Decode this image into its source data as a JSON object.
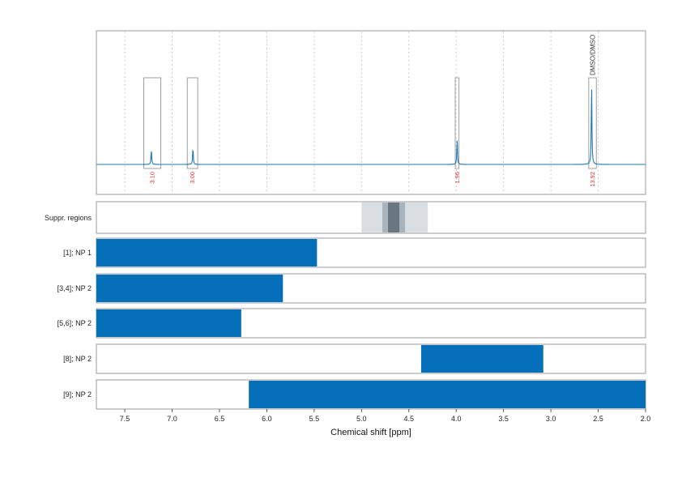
{
  "chart_data": {
    "type": "line",
    "xlabel": "Chemical shift [ppm]",
    "xlim": [
      7.8,
      2.0
    ],
    "x_reversed": true,
    "x_ticks": [
      7.5,
      7.0,
      6.5,
      6.0,
      5.5,
      5.0,
      4.5,
      4.0,
      3.5,
      3.0,
      2.5,
      2.0
    ],
    "x_tick_labels": [
      "7.5",
      "7.0",
      "6.5",
      "6.0",
      "5.5",
      "5.0",
      "4.5",
      "4.0",
      "3.5",
      "3.0",
      "2.5",
      "2.0"
    ],
    "grid": "vertical dotted",
    "colors": {
      "spectrum": "#1f77b4",
      "integral": "#e03030",
      "bar": "#0570b9",
      "box": "#888888"
    },
    "spectrum": {
      "peaks": [
        {
          "center": 7.22,
          "height": 0.18
        },
        {
          "center": 6.78,
          "height": 0.2
        },
        {
          "center": 3.99,
          "height": 0.3
        },
        {
          "center": 2.57,
          "height": 0.95
        }
      ]
    },
    "integration_regions": [
      {
        "start": 7.3,
        "end": 7.12,
        "label": "3.10"
      },
      {
        "start": 6.84,
        "end": 6.73,
        "label": "3.00"
      },
      {
        "start": 4.01,
        "end": 3.97,
        "label": "1.96"
      },
      {
        "start": 2.6,
        "end": 2.52,
        "label": "13.92",
        "annotation": "DMSO/DMSO"
      }
    ],
    "suppressed_regions": {
      "label": "Suppr. regions",
      "bands": [
        {
          "start": 5.0,
          "end": 4.3,
          "shade": "#d9dee3"
        },
        {
          "start": 4.78,
          "end": 4.54,
          "shade": "#a9b3bc"
        },
        {
          "start": 4.72,
          "end": 4.6,
          "shade": "#6b7780"
        }
      ]
    },
    "bar_rows": [
      {
        "label": "[1]; NP 1",
        "start": 7.8,
        "end": 5.47
      },
      {
        "label": "[3,4]; NP 2",
        "start": 7.8,
        "end": 5.83
      },
      {
        "label": "[5,6]; NP 2",
        "start": 7.8,
        "end": 6.27
      },
      {
        "label": "[8]; NP 2",
        "start": 4.37,
        "end": 3.08
      },
      {
        "label": "[9]; NP 2",
        "start": 6.19,
        "end": 2.0
      }
    ]
  }
}
